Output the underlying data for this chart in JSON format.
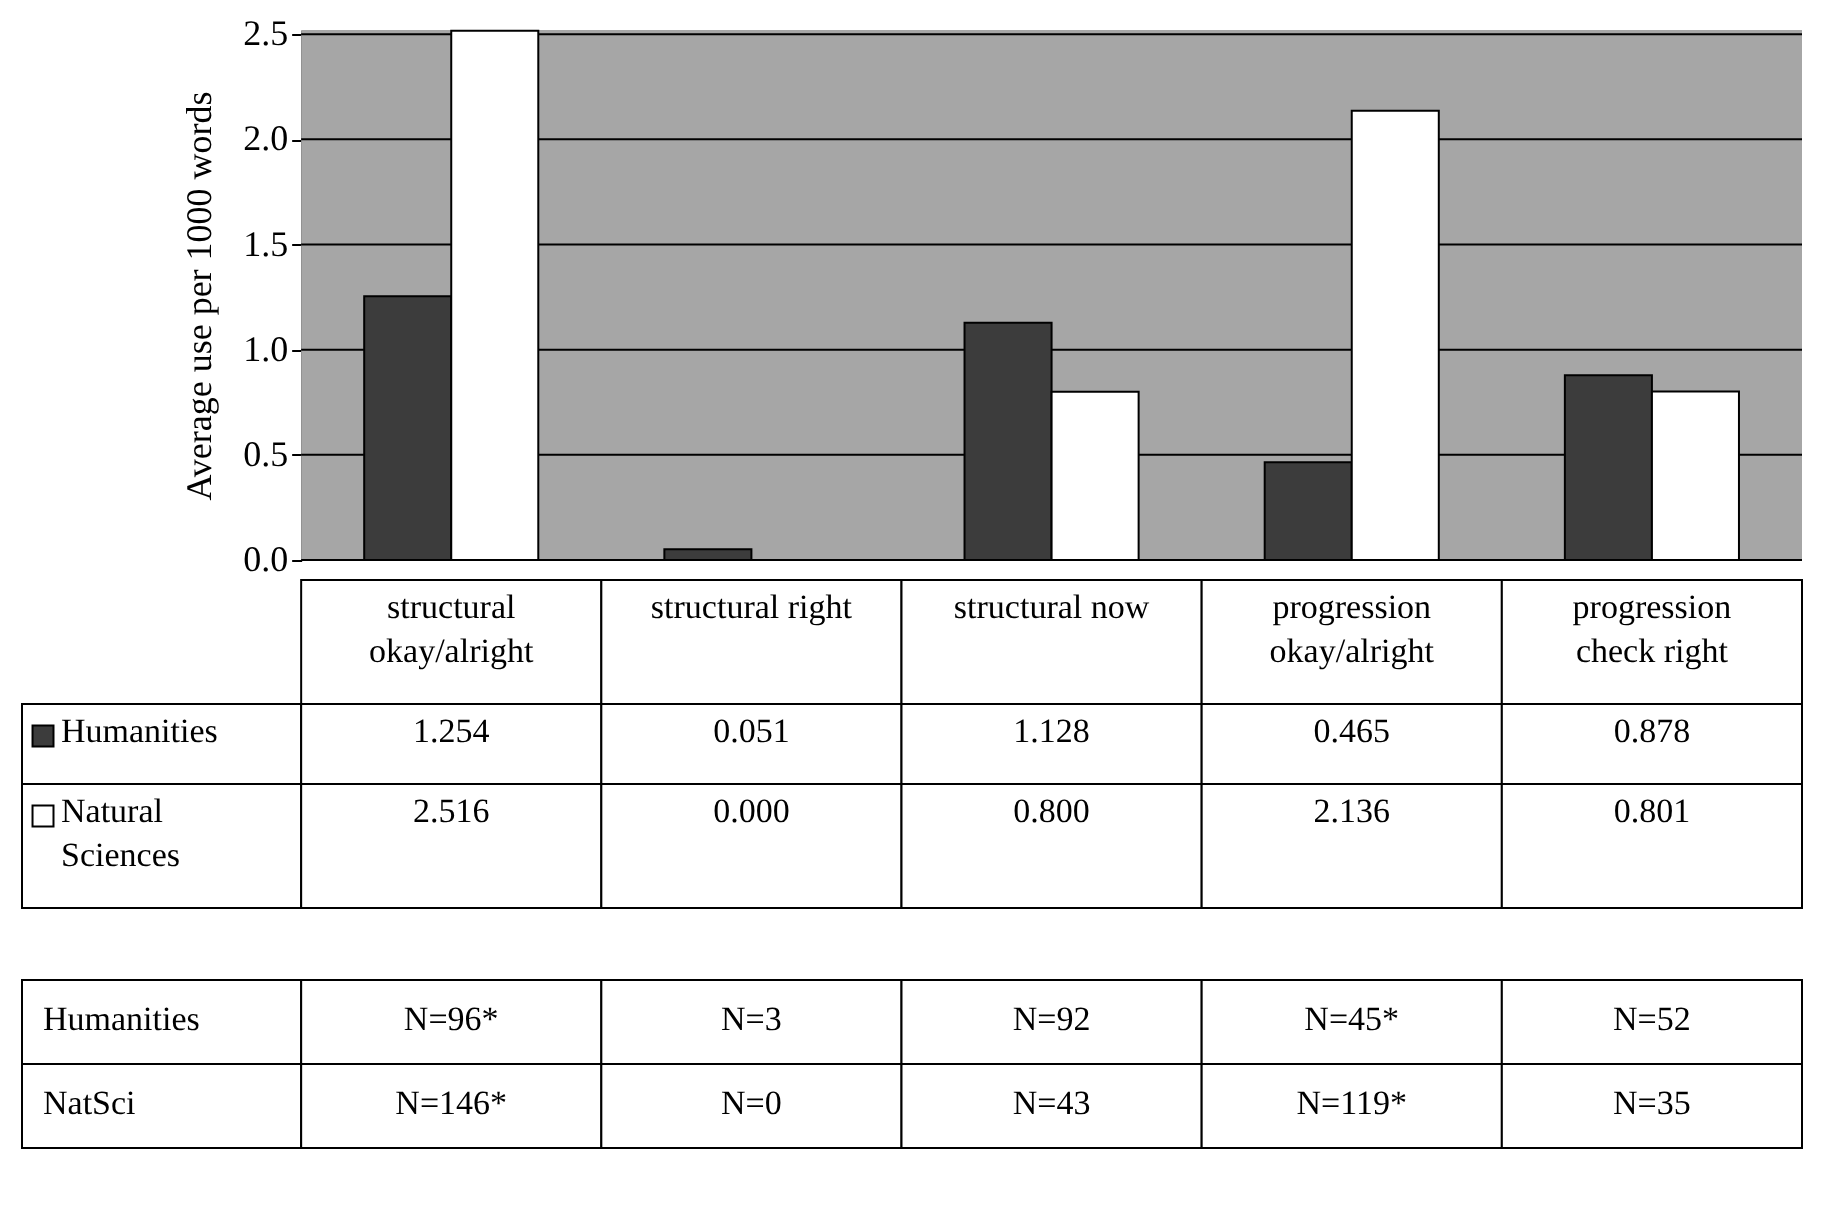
{
  "chart_data": {
    "type": "bar",
    "ylabel": "Average use per 1000 words",
    "categories": [
      "structural okay/alright",
      "structural right",
      "structural now",
      "progression okay/alright",
      "progression check right"
    ],
    "series": [
      {
        "name": "Humanities",
        "color": "#3c3c3c",
        "values": [
          1.254,
          0.051,
          1.128,
          0.465,
          0.878
        ],
        "value_labels": [
          "1.254",
          "0.051",
          "1.128",
          "0.465",
          "0.878"
        ]
      },
      {
        "name": "Natural Sciences",
        "color": "#ffffff",
        "values": [
          2.516,
          0.0,
          0.8,
          2.136,
          0.801
        ],
        "value_labels": [
          "2.516",
          "0.000",
          "0.800",
          "2.136",
          "0.801"
        ]
      }
    ],
    "ylim": [
      0,
      2.52
    ],
    "yticks": [
      {
        "value": 0,
        "label": "0.0"
      },
      {
        "value": 0.5,
        "label": "0.5"
      },
      {
        "value": 1,
        "label": "1.0"
      },
      {
        "value": 1.5,
        "label": "1.5"
      },
      {
        "value": 2,
        "label": "2.0"
      },
      {
        "value": 2.5,
        "label": "2.5"
      }
    ],
    "grid": true,
    "legend": "bottom",
    "annotations": [
      "Humanities",
      "N=96*",
      "N=3",
      "N=92",
      "N=45*",
      "N=52",
      "NatSci",
      "N=146*",
      "N=0",
      "N=43",
      "N=119*",
      "N=35"
    ]
  }
}
